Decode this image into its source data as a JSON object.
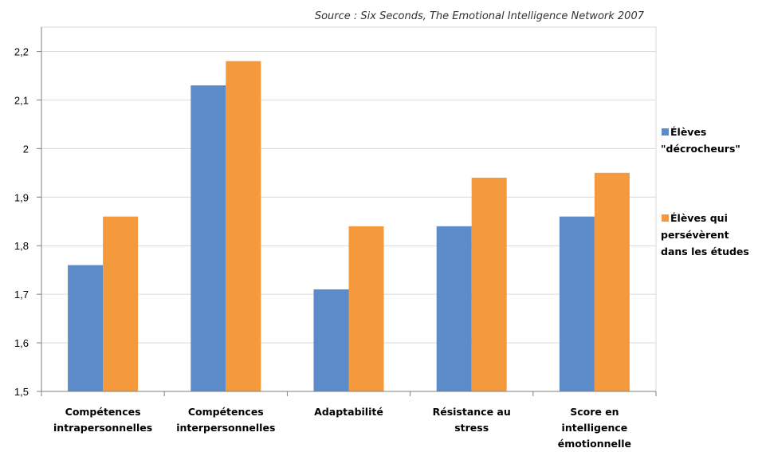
{
  "chart_data": {
    "type": "bar",
    "title": "",
    "subtitle": "Source : Six Seconds, The Emotional Intelligence Network 2007",
    "xlabel": "",
    "ylabel": "",
    "ylim": [
      1.5,
      2.25
    ],
    "yticks": [
      "1,5",
      "1,6",
      "1,7",
      "1,8",
      "1,9",
      "2",
      "2,1",
      "2,2"
    ],
    "grid": true,
    "legend_position": "right",
    "categories": [
      [
        "Compétences",
        "intrapersonnelles"
      ],
      [
        "Compétences",
        "interpersonnelles"
      ],
      [
        "Adaptabilité"
      ],
      [
        "Résistance au",
        "stress"
      ],
      [
        "Score en",
        "intelligence",
        "émotionnelle"
      ]
    ],
    "series": [
      {
        "name": [
          "Élèves",
          "\"décrocheurs\""
        ],
        "color": "#5b8bc9",
        "values": [
          1.76,
          2.13,
          1.71,
          1.84,
          1.86
        ]
      },
      {
        "name": [
          "Élèves qui",
          "persévèrent",
          "dans les études"
        ],
        "color": "#f59a3c",
        "values": [
          1.86,
          2.18,
          1.84,
          1.94,
          1.95
        ]
      }
    ]
  }
}
